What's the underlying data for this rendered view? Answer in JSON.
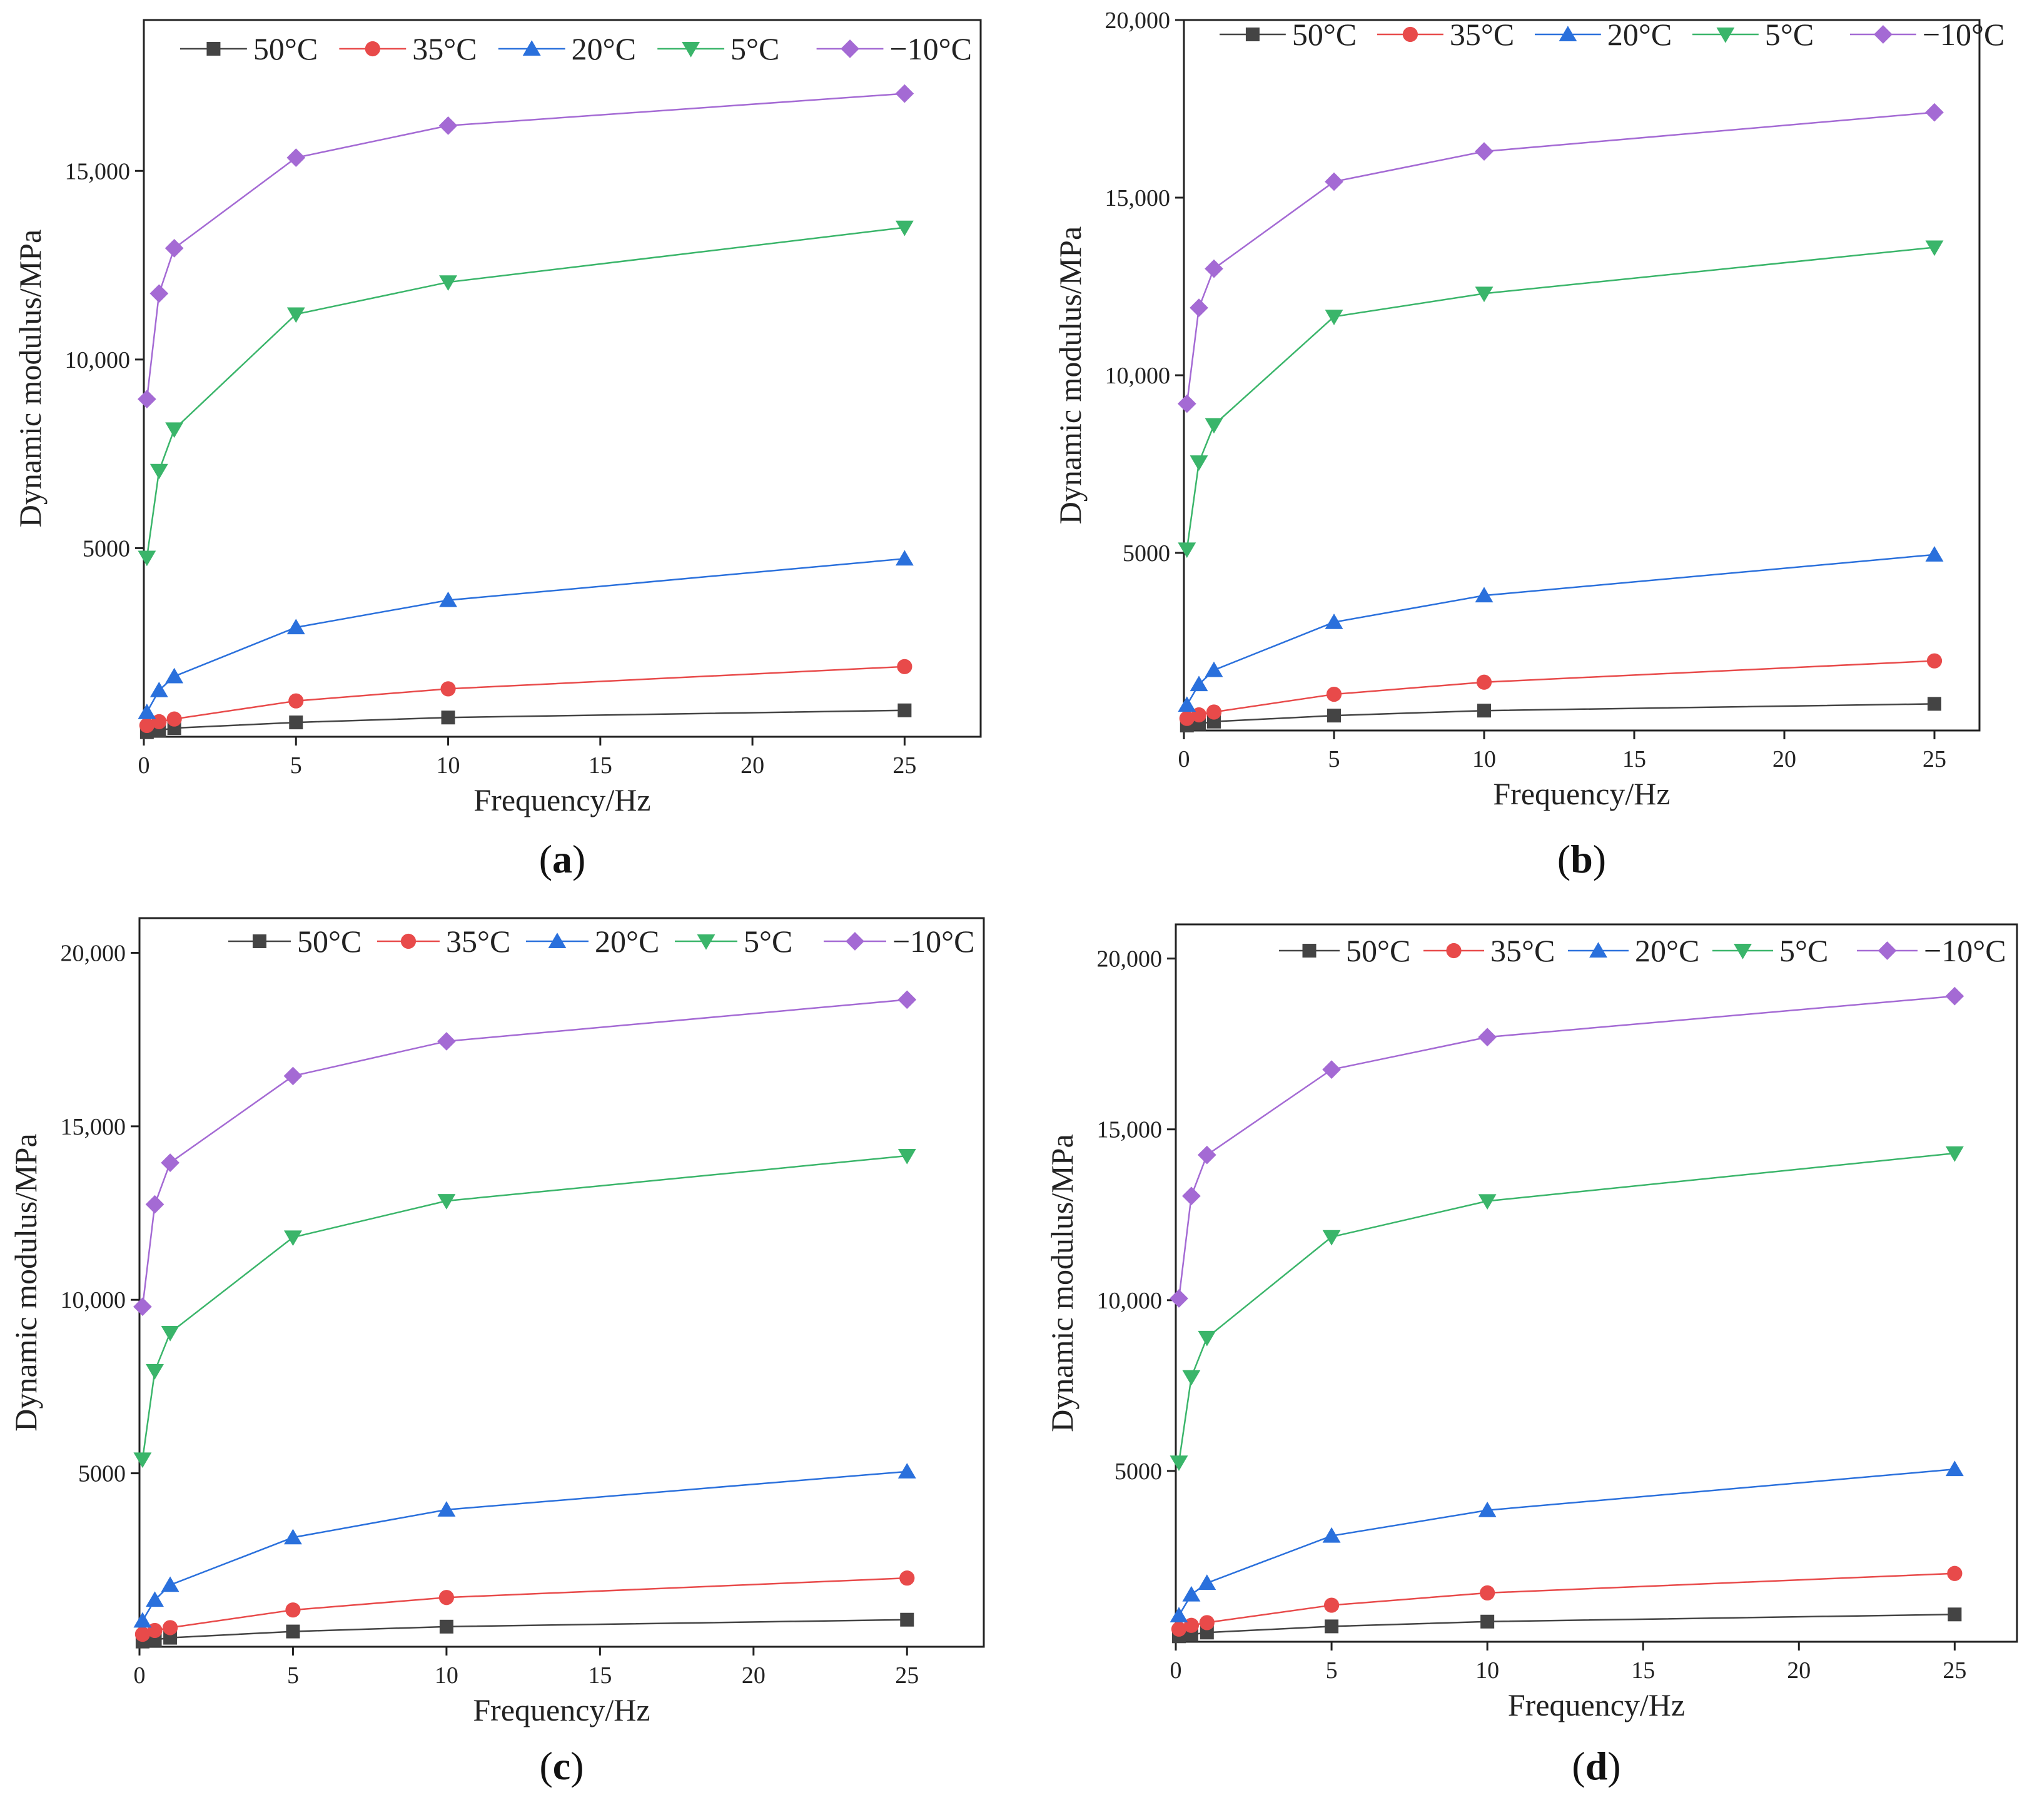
{
  "figure": {
    "colors": {
      "50°C": "#444444",
      "35°C": "#e84a4a",
      "20°C": "#2a70dc",
      "5°C": "#3ab56a",
      "−10°C": "#a46ad4",
      "axis": "#222222"
    }
  },
  "chart_data": [
    {
      "panel": "a",
      "type": "line",
      "title": "",
      "label": {
        "open": "(",
        "letter": "a",
        "close": ")"
      },
      "xlabel": "Frequency/Hz",
      "ylabel": "Dynamic modulus/MPa",
      "xlim": [
        0,
        27.5
      ],
      "ylim": [
        0,
        19000
      ],
      "xticks": [
        0,
        5,
        10,
        15,
        20,
        25
      ],
      "xtick_labels": [
        "0",
        "5",
        "10",
        "15",
        "20",
        "25"
      ],
      "yticks": [
        5000,
        10000,
        15000
      ],
      "ytick_labels": [
        "5000",
        "10,000",
        "15,000"
      ],
      "grid": false,
      "legend": "top",
      "x": [
        0.1,
        0.5,
        1,
        5,
        10,
        25
      ],
      "series": [
        {
          "name": "50°C",
          "marker": "square",
          "values": [
            120,
            170,
            230,
            380,
            510,
            700
          ]
        },
        {
          "name": "35°C",
          "marker": "circle",
          "values": [
            300,
            400,
            470,
            950,
            1270,
            1860
          ]
        },
        {
          "name": "20°C",
          "marker": "triangle-up",
          "values": [
            650,
            1230,
            1600,
            2900,
            3620,
            4720
          ]
        },
        {
          "name": "5°C",
          "marker": "triangle-down",
          "values": [
            4750,
            7050,
            8150,
            11200,
            12050,
            13500
          ]
        },
        {
          "name": "−10°C",
          "marker": "diamond",
          "values": [
            8950,
            11750,
            12950,
            15350,
            16200,
            17050
          ]
        }
      ]
    },
    {
      "panel": "b",
      "type": "line",
      "title": "",
      "label": {
        "open": "(",
        "letter": "b",
        "close": ")"
      },
      "xlabel": "Frequency/Hz",
      "ylabel": "Dynamic modulus/MPa",
      "xlim": [
        0,
        26.5
      ],
      "ylim": [
        0,
        20000
      ],
      "xticks": [
        0,
        5,
        10,
        15,
        20,
        25
      ],
      "xtick_labels": [
        "0",
        "5",
        "10",
        "15",
        "20",
        "25"
      ],
      "yticks": [
        5000,
        10000,
        15000,
        20000
      ],
      "ytick_labels": [
        "5000",
        "10,000",
        "15,000",
        "20,000"
      ],
      "grid": false,
      "legend": "top",
      "x": [
        0.1,
        0.5,
        1,
        5,
        10,
        25
      ],
      "series": [
        {
          "name": "50°C",
          "marker": "square",
          "values": [
            140,
            190,
            250,
            420,
            560,
            750
          ]
        },
        {
          "name": "35°C",
          "marker": "circle",
          "values": [
            340,
            440,
            520,
            1020,
            1360,
            1960
          ]
        },
        {
          "name": "20°C",
          "marker": "triangle-up",
          "values": [
            720,
            1300,
            1700,
            3050,
            3800,
            4950
          ]
        },
        {
          "name": "5°C",
          "marker": "triangle-down",
          "values": [
            5100,
            7550,
            8600,
            11650,
            12300,
            13600
          ]
        },
        {
          "name": "−10°C",
          "marker": "diamond",
          "values": [
            9200,
            11900,
            13000,
            15450,
            16300,
            17400
          ]
        }
      ]
    },
    {
      "panel": "c",
      "type": "line",
      "title": "",
      "label": {
        "open": "(",
        "letter": "c",
        "close": ")"
      },
      "xlabel": "Frequency/Hz",
      "ylabel": "Dynamic modulus/MPa",
      "xlim": [
        0,
        27.5
      ],
      "ylim": [
        0,
        21000
      ],
      "xticks": [
        0,
        5,
        10,
        15,
        20,
        25
      ],
      "xtick_labels": [
        "0",
        "5",
        "10",
        "15",
        "20",
        "25"
      ],
      "yticks": [
        5000,
        10000,
        15000,
        20000
      ],
      "ytick_labels": [
        "5000",
        "10,000",
        "15,000",
        "20,000"
      ],
      "grid": false,
      "legend": "top",
      "x": [
        0.1,
        0.5,
        1,
        5,
        10,
        25
      ],
      "series": [
        {
          "name": "50°C",
          "marker": "square",
          "values": [
            150,
            200,
            260,
            440,
            580,
            780
          ]
        },
        {
          "name": "35°C",
          "marker": "circle",
          "values": [
            360,
            470,
            550,
            1060,
            1420,
            1980
          ]
        },
        {
          "name": "20°C",
          "marker": "triangle-up",
          "values": [
            750,
            1350,
            1780,
            3150,
            3950,
            5050
          ]
        },
        {
          "name": "5°C",
          "marker": "triangle-down",
          "values": [
            5400,
            7950,
            9050,
            11800,
            12850,
            14150
          ]
        },
        {
          "name": "−10°C",
          "marker": "diamond",
          "values": [
            9800,
            12750,
            13950,
            16450,
            17450,
            18650
          ]
        }
      ]
    },
    {
      "panel": "d",
      "type": "line",
      "title": "",
      "label": {
        "open": "(",
        "letter": "d",
        "close": ")"
      },
      "xlabel": "Frequency/Hz",
      "ylabel": "Dynamic modulus/MPa",
      "xlim": [
        0,
        27
      ],
      "ylim": [
        0,
        21000
      ],
      "xticks": [
        0,
        5,
        10,
        15,
        20,
        25
      ],
      "xtick_labels": [
        "0",
        "5",
        "10",
        "15",
        "20",
        "25"
      ],
      "yticks": [
        5000,
        10000,
        15000,
        20000
      ],
      "ytick_labels": [
        "5000",
        "10,000",
        "15,000",
        "20,000"
      ],
      "grid": false,
      "legend": "top",
      "x": [
        0.1,
        0.5,
        1,
        5,
        10,
        25
      ],
      "series": [
        {
          "name": "50°C",
          "marker": "square",
          "values": [
            160,
            210,
            270,
            450,
            590,
            800
          ]
        },
        {
          "name": "35°C",
          "marker": "circle",
          "values": [
            370,
            480,
            560,
            1070,
            1430,
            2000
          ]
        },
        {
          "name": "20°C",
          "marker": "triangle-up",
          "values": [
            770,
            1380,
            1720,
            3100,
            3850,
            5050
          ]
        },
        {
          "name": "5°C",
          "marker": "triangle-down",
          "values": [
            5250,
            7750,
            8900,
            11850,
            12900,
            14300
          ]
        },
        {
          "name": "−10°C",
          "marker": "diamond",
          "values": [
            10050,
            13050,
            14250,
            16750,
            17700,
            18900
          ]
        }
      ]
    }
  ]
}
